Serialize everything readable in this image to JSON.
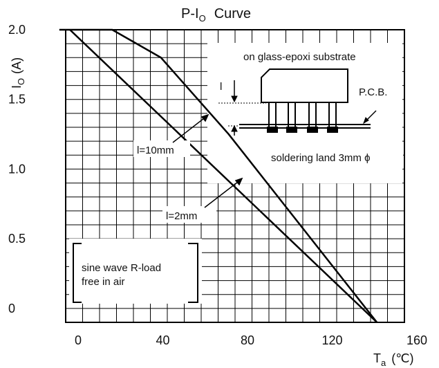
{
  "chart_data": {
    "type": "line",
    "title": "P-I",
    "title_sub": "O",
    "title_tail": "Curve",
    "ylabel": "I",
    "ylabel_sub": "O",
    "ylabel_tail": "(A)",
    "xlabel": "T",
    "xlabel_sub": "a",
    "xlabel_tail": "(℃)",
    "xlim": [
      0,
      160
    ],
    "ylim": [
      -0.1,
      2.0
    ],
    "grid": true,
    "x_ticks": [
      {
        "label": "0",
        "value": 0
      },
      {
        "label": "40",
        "value": 40
      },
      {
        "label": "80",
        "value": 80
      },
      {
        "label": "120",
        "value": 120
      },
      {
        "label": "160",
        "value": 160
      }
    ],
    "y_ticks": [
      {
        "label": "2.0",
        "value": 2.0
      },
      {
        "label": "1.5",
        "value": 1.5
      },
      {
        "label": "1.0",
        "value": 1.0
      },
      {
        "label": "0.5",
        "value": 0.5
      },
      {
        "label": "0",
        "value": 0
      }
    ],
    "series": [
      {
        "name": "l=10mm",
        "x": [
          -5,
          20,
          43,
          75,
          145
        ],
        "y": [
          2.0,
          2.0,
          1.8,
          1.25,
          -0.1
        ]
      },
      {
        "name": "l=2mm",
        "x": [
          0,
          145
        ],
        "y": [
          2.0,
          -0.1
        ]
      }
    ],
    "annotations": {
      "inset_title": "on glass-epoxi substrate",
      "pcb_label": "P.C.B.",
      "dim_label": "l",
      "land_label": "soldering land 3mm ϕ",
      "bracket_note": [
        "sine wave R-load",
        "free in air"
      ]
    }
  },
  "colors": {
    "line": "#000000",
    "grid": "#000000"
  }
}
